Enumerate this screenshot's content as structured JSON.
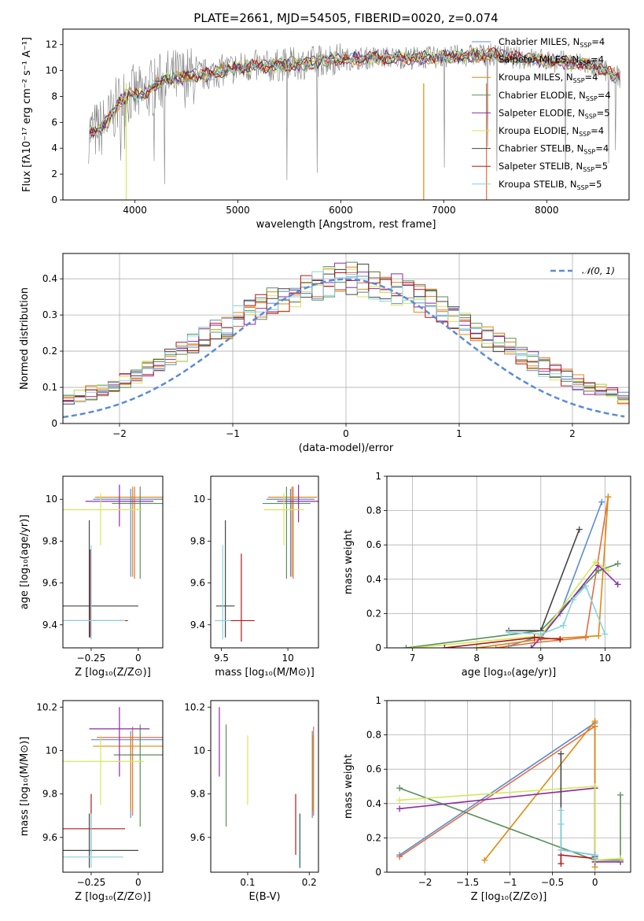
{
  "title": "PLATE=2661, MJD=54505, FIBERID=0020, z=0.074",
  "colors": {
    "Chabrier MILES": "#5b8bd6",
    "Salpeter MILES": "#e26e42",
    "Kroupa MILES": "#e08a10",
    "Chabrier ELODIE": "#5a8f5a",
    "Salpeter ELODIE": "#8e2ba6",
    "Kroupa ELODIE": "#d4e85a",
    "Chabrier STELIB": "#454545",
    "Salpeter STELIB": "#b01818",
    "Kroupa STELIB": "#86d3e0",
    "data": "#808080",
    "normal": "#5b8bd6"
  },
  "chart_data": [
    {
      "id": "spectrum",
      "type": "line",
      "title": "PLATE=2661, MJD=54505, FIBERID=0020, z=0.074",
      "xlabel": "wavelength [Angstrom, rest frame]",
      "ylabel": "Flux [fλ10⁻¹⁷ erg cm⁻² s⁻¹ A⁻¹]",
      "xlim": [
        3300,
        8800
      ],
      "ylim": [
        0,
        13.2
      ],
      "xticks": [
        4000,
        5000,
        6000,
        7000,
        8000
      ],
      "yticks": [
        0,
        2,
        4,
        6,
        8,
        10,
        12
      ],
      "legend": [
        {
          "label": "Chabrier MILES, N",
          "sub": "SSP",
          "tail": "=4",
          "key": "Chabrier MILES"
        },
        {
          "label": "Salpeter MILES, N",
          "sub": "SSP",
          "tail": "=4",
          "key": "Salpeter MILES"
        },
        {
          "label": "Kroupa MILES, N",
          "sub": "SSP",
          "tail": "=4",
          "key": "Kroupa MILES"
        },
        {
          "label": "Chabrier ELODIE, N",
          "sub": "SSP",
          "tail": "=4",
          "key": "Chabrier ELODIE"
        },
        {
          "label": "Salpeter ELODIE, N",
          "sub": "SSP",
          "tail": "=5",
          "key": "Salpeter ELODIE"
        },
        {
          "label": "Kroupa ELODIE, N",
          "sub": "SSP",
          "tail": "=4",
          "key": "Kroupa ELODIE"
        },
        {
          "label": "Chabrier STELIB, N",
          "sub": "SSP",
          "tail": "=4",
          "key": "Chabrier STELIB"
        },
        {
          "label": "Salpeter STELIB, N",
          "sub": "SSP",
          "tail": "=5",
          "key": "Salpeter STELIB"
        },
        {
          "label": "Kroupa STELIB, N",
          "sub": "SSP",
          "tail": "=5",
          "key": "Kroupa STELIB"
        }
      ],
      "legend_position": "right",
      "model_envelope": {
        "x": [
          3550,
          3650,
          3750,
          3850,
          3950,
          4050,
          4150,
          4300,
          4500,
          4700,
          4900,
          5100,
          5300,
          5500,
          5700,
          5900,
          6100,
          6300,
          6500,
          6700,
          6900,
          7100,
          7300,
          7500,
          7700,
          7900,
          8100,
          8300,
          8500,
          8700
        ],
        "y": [
          5.2,
          5.4,
          6.2,
          7.6,
          8.2,
          8.0,
          8.6,
          9.3,
          9.5,
          9.7,
          10.1,
          10.3,
          10.3,
          10.5,
          10.6,
          10.9,
          10.9,
          11.0,
          11.0,
          11.0,
          11.0,
          11.1,
          11.2,
          11.2,
          11.0,
          10.9,
          10.7,
          10.6,
          10.2,
          9.5
        ]
      }
    },
    {
      "id": "residuals",
      "type": "line",
      "xlabel": "(data-model)/error",
      "ylabel": "Normed distribution",
      "xlim": [
        -2.5,
        2.5
      ],
      "ylim": [
        0,
        0.47
      ],
      "xticks": [
        -2,
        -1,
        0,
        1,
        2
      ],
      "yticks": [
        0.0,
        0.1,
        0.2,
        0.3,
        0.4
      ],
      "grid": true,
      "legend": "𝒩(0, 1)",
      "legend_position": "top-right",
      "bin_width": 0.1,
      "histogram_mean": [
        0.028,
        0.032,
        0.036,
        0.042,
        0.05,
        0.058,
        0.066,
        0.075,
        0.085,
        0.096,
        0.108,
        0.121,
        0.135,
        0.15,
        0.165,
        0.182,
        0.199,
        0.216,
        0.234,
        0.252,
        0.27,
        0.288,
        0.305,
        0.322,
        0.338,
        0.353,
        0.366,
        0.378,
        0.388,
        0.396,
        0.4,
        0.399,
        0.396,
        0.39,
        0.382,
        0.371,
        0.359,
        0.345,
        0.33,
        0.313,
        0.296,
        0.278,
        0.26,
        0.242,
        0.224,
        0.206,
        0.189,
        0.172,
        0.156,
        0.141,
        0.127,
        0.113,
        0.101,
        0.09,
        0.08,
        0.07,
        0.062,
        0.054,
        0.047,
        0.041,
        0.036,
        0.032
      ]
    },
    {
      "id": "age-vs-Z",
      "type": "scatter",
      "xlabel": "Z [log₁₀(Z/Z⊙)]",
      "ylabel": "age  [log₁₀(age/yr)]",
      "xlim": [
        -0.4,
        0.13
      ],
      "ylim": [
        9.29,
        10.11
      ],
      "xticks": [
        -0.25,
        0.0
      ],
      "yticks": [
        9.4,
        9.6,
        9.8,
        10.0
      ],
      "points": [
        {
          "key": "Chabrier MILES",
          "x": -0.04,
          "y": 10.0,
          "xerr": 0.2,
          "yerr": [
            0.37,
            0.05
          ]
        },
        {
          "key": "Salpeter MILES",
          "x": -0.02,
          "y": 10.01,
          "xerr": 0.2,
          "yerr": [
            0.39,
            0.05
          ]
        },
        {
          "key": "Kroupa MILES",
          "x": -0.03,
          "y": 10.01,
          "xerr": 0.2,
          "yerr": [
            0.38,
            0.05
          ]
        },
        {
          "key": "Chabrier ELODIE",
          "x": 0.01,
          "y": 9.98,
          "xerr": 0.15,
          "yerr": [
            0.36,
            0.08
          ]
        },
        {
          "key": "Salpeter ELODIE",
          "x": -0.1,
          "y": 9.99,
          "xerr": 0.18,
          "yerr": [
            0.12,
            0.08
          ]
        },
        {
          "key": "Kroupa ELODIE",
          "x": -0.2,
          "y": 9.95,
          "xerr": 0.22,
          "yerr": [
            0.17,
            0.08
          ]
        },
        {
          "key": "Chabrier STELIB",
          "x": -0.26,
          "y": 9.49,
          "xerr": 0.26,
          "yerr": [
            0.15,
            0.41
          ]
        },
        {
          "key": "Salpeter STELIB",
          "x": -0.255,
          "y": 9.42,
          "xerr": 0.2,
          "yerr": [
            0.08,
            0.34
          ]
        },
        {
          "key": "Kroupa STELIB",
          "x": -0.25,
          "y": 9.42,
          "xerr": 0.18,
          "yerr": [
            0.09,
            0.36
          ]
        }
      ]
    },
    {
      "id": "age-vs-mass",
      "type": "scatter",
      "xlabel": "mass [log₁₀(M/M⊙)]",
      "ylabel": "",
      "xlim": [
        9.42,
        10.23
      ],
      "ylim": [
        9.29,
        10.11
      ],
      "xticks": [
        9.5,
        10.0
      ],
      "yticks": [
        9.4,
        9.6,
        9.8,
        10.0
      ],
      "points": [
        {
          "key": "Chabrier MILES",
          "x": 10.02,
          "y": 10.0,
          "xerr": 0.18,
          "yerr": [
            0.37,
            0.05
          ]
        },
        {
          "key": "Salpeter MILES",
          "x": 10.04,
          "y": 10.01,
          "xerr": 0.18,
          "yerr": [
            0.39,
            0.05
          ]
        },
        {
          "key": "Kroupa MILES",
          "x": 10.03,
          "y": 10.01,
          "xerr": 0.18,
          "yerr": [
            0.38,
            0.05
          ]
        },
        {
          "key": "Chabrier ELODIE",
          "x": 9.99,
          "y": 9.98,
          "xerr": 0.18,
          "yerr": [
            0.36,
            0.08
          ]
        },
        {
          "key": "Salpeter ELODIE",
          "x": 10.08,
          "y": 9.99,
          "xerr": 0.16,
          "yerr": [
            0.1,
            0.08
          ]
        },
        {
          "key": "Kroupa ELODIE",
          "x": 9.97,
          "y": 9.95,
          "xerr": 0.15,
          "yerr": [
            0.17,
            0.08
          ]
        },
        {
          "key": "Chabrier STELIB",
          "x": 9.53,
          "y": 9.49,
          "xerr": 0.07,
          "yerr": [
            0.15,
            0.41
          ]
        },
        {
          "key": "Salpeter STELIB",
          "x": 9.65,
          "y": 9.42,
          "xerr": 0.1,
          "yerr": [
            0.1,
            0.32
          ]
        },
        {
          "key": "Kroupa STELIB",
          "x": 9.51,
          "y": 9.42,
          "xerr": 0.06,
          "yerr": [
            0.09,
            0.36
          ]
        }
      ]
    },
    {
      "id": "massweight-vs-age",
      "type": "line",
      "xlabel": "age  [log₁₀(age/yr)]",
      "ylabel": "mass weight",
      "xlim": [
        6.6,
        10.4
      ],
      "ylim": [
        0,
        1.0
      ],
      "xticks": [
        7,
        8,
        9,
        10
      ],
      "yticks": [
        0.0,
        0.2,
        0.4,
        0.6,
        0.8,
        1.0
      ],
      "grid": true,
      "series": [
        {
          "key": "Chabrier MILES",
          "x": [
            8.5,
            9.0,
            9.3,
            9.95
          ],
          "y": [
            0.01,
            0.07,
            0.2,
            0.85
          ]
        },
        {
          "key": "Salpeter MILES",
          "x": [
            8.3,
            8.9,
            9.7,
            10.05
          ],
          "y": [
            0.0,
            0.03,
            0.06,
            0.88
          ]
        },
        {
          "key": "Kroupa MILES",
          "x": [
            8.0,
            9.0,
            9.9,
            10.05
          ],
          "y": [
            0.0,
            0.05,
            0.07,
            0.88
          ]
        },
        {
          "key": "Chabrier ELODIE",
          "x": [
            6.9,
            9.0,
            9.9,
            10.2
          ],
          "y": [
            0.0,
            0.1,
            0.45,
            0.49
          ]
        },
        {
          "key": "Salpeter ELODIE",
          "x": [
            8.85,
            9.0,
            9.9,
            10.2
          ],
          "y": [
            0.0,
            0.06,
            0.48,
            0.37
          ]
        },
        {
          "key": "Kroupa ELODIE",
          "x": [
            7.0,
            9.0,
            9.85,
            10.05
          ],
          "y": [
            0.0,
            0.07,
            0.5,
            0.45
          ]
        },
        {
          "key": "Chabrier STELIB",
          "x": [
            8.5,
            9.0,
            9.6
          ],
          "y": [
            0.1,
            0.1,
            0.69
          ]
        },
        {
          "key": "Salpeter STELIB",
          "x": [
            7.5,
            8.9,
            9.3
          ],
          "y": [
            0.0,
            0.06,
            0.05
          ]
        },
        {
          "key": "Kroupa STELIB",
          "x": [
            8.5,
            9.0,
            9.35,
            9.5,
            9.7,
            10.0
          ],
          "y": [
            0.09,
            0.08,
            0.13,
            0.28,
            0.36,
            0.08
          ]
        }
      ]
    },
    {
      "id": "mass-vs-Z",
      "type": "scatter",
      "xlabel": "Z [log₁₀(Z/Z⊙)]",
      "ylabel": "mass [log₁₀(M/M⊙)]",
      "xlim": [
        -0.4,
        0.13
      ],
      "ylim": [
        9.44,
        10.23
      ],
      "xticks": [
        -0.25,
        0.0
      ],
      "yticks": [
        9.6,
        9.8,
        10.0,
        10.2
      ],
      "points": [
        {
          "key": "Chabrier MILES",
          "x": -0.04,
          "y": 10.05,
          "xerr": 0.21,
          "yerr": [
            0.36,
            0.04
          ]
        },
        {
          "key": "Salpeter MILES",
          "x": -0.03,
          "y": 10.06,
          "xerr": 0.19,
          "yerr": [
            0.36,
            0.05
          ]
        },
        {
          "key": "Kroupa MILES",
          "x": -0.04,
          "y": 10.02,
          "xerr": 0.2,
          "yerr": [
            0.3,
            0.05
          ]
        },
        {
          "key": "Chabrier ELODIE",
          "x": 0.01,
          "y": 9.98,
          "xerr": 0.14,
          "yerr": [
            0.33,
            0.14
          ]
        },
        {
          "key": "Salpeter ELODIE",
          "x": -0.1,
          "y": 10.1,
          "xerr": 0.16,
          "yerr": [
            0.22,
            0.1
          ]
        },
        {
          "key": "Kroupa ELODIE",
          "x": -0.2,
          "y": 9.95,
          "xerr": 0.23,
          "yerr": [
            0.2,
            0.12
          ]
        },
        {
          "key": "Chabrier STELIB",
          "x": -0.26,
          "y": 9.54,
          "xerr": 0.26,
          "yerr": [
            0.08,
            0.17
          ]
        },
        {
          "key": "Salpeter STELIB",
          "x": -0.25,
          "y": 9.64,
          "xerr": 0.18,
          "yerr": [
            0.12,
            0.16
          ]
        },
        {
          "key": "Kroupa STELIB",
          "x": -0.25,
          "y": 9.51,
          "xerr": 0.17,
          "yerr": [
            0.05,
            0.2
          ]
        }
      ]
    },
    {
      "id": "mass-vs-ebv",
      "type": "scatter",
      "xlabel": "E(B-V)",
      "ylabel": "",
      "xlim": [
        0.04,
        0.215
      ],
      "ylim": [
        9.44,
        10.23
      ],
      "xticks": [
        0.1,
        0.2
      ],
      "yticks": [
        9.6,
        9.8,
        10.0,
        10.2
      ],
      "points": [
        {
          "key": "Chabrier MILES",
          "x": 0.205,
          "y": 10.05,
          "yerr": [
            0.36,
            0.04
          ]
        },
        {
          "key": "Salpeter MILES",
          "x": 0.207,
          "y": 10.06,
          "yerr": [
            0.36,
            0.05
          ]
        },
        {
          "key": "Kroupa MILES",
          "x": 0.206,
          "y": 10.02,
          "yerr": [
            0.3,
            0.05
          ]
        },
        {
          "key": "Chabrier ELODIE",
          "x": 0.065,
          "y": 9.98,
          "yerr": [
            0.33,
            0.14
          ]
        },
        {
          "key": "Salpeter ELODIE",
          "x": 0.054,
          "y": 10.1,
          "yerr": [
            0.22,
            0.1
          ]
        },
        {
          "key": "Kroupa ELODIE",
          "x": 0.1,
          "y": 9.95,
          "yerr": [
            0.2,
            0.12
          ]
        },
        {
          "key": "Chabrier STELIB",
          "x": 0.185,
          "y": 9.54,
          "yerr": [
            0.08,
            0.17
          ]
        },
        {
          "key": "Salpeter STELIB",
          "x": 0.178,
          "y": 9.64,
          "yerr": [
            0.12,
            0.16
          ]
        },
        {
          "key": "Kroupa STELIB",
          "x": 0.184,
          "y": 9.51,
          "yerr": [
            0.05,
            0.2
          ]
        }
      ]
    },
    {
      "id": "massweight-vs-Z",
      "type": "line",
      "xlabel": "Z [log₁₀(Z/Z⊙)]",
      "ylabel": "mass weight",
      "xlim": [
        -2.45,
        0.42
      ],
      "ylim": [
        0,
        1.0
      ],
      "xticks": [
        -2.0,
        -1.5,
        -1.0,
        -0.5,
        0.0
      ],
      "yticks": [
        0.0,
        0.2,
        0.4,
        0.6,
        0.8,
        1.0
      ],
      "grid": true,
      "series": [
        {
          "key": "Chabrier MILES",
          "x": [
            -2.3,
            0.0,
            0.0
          ],
          "y": [
            0.1,
            0.87,
            0.1
          ]
        },
        {
          "key": "Salpeter MILES",
          "x": [
            -2.3,
            0.0,
            0.0
          ],
          "y": [
            0.09,
            0.85,
            0.06
          ]
        },
        {
          "key": "Kroupa MILES",
          "x": [
            -1.3,
            0.0,
            0.0
          ],
          "y": [
            0.07,
            0.88,
            0.03
          ]
        },
        {
          "key": "Chabrier ELODIE",
          "x": [
            -2.3,
            0.0,
            0.3,
            0.3
          ],
          "y": [
            0.49,
            0.07,
            0.07,
            0.45
          ]
        },
        {
          "key": "Salpeter ELODIE",
          "x": [
            -2.3,
            0.0,
            0.0,
            0.3
          ],
          "y": [
            0.37,
            0.49,
            0.06,
            0.06
          ]
        },
        {
          "key": "Kroupa ELODIE",
          "x": [
            -2.3,
            0.0,
            0.0,
            0.3
          ],
          "y": [
            0.42,
            0.5,
            0.07,
            0.08
          ]
        },
        {
          "key": "Chabrier STELIB",
          "x": [
            -0.4,
            -0.4,
            0.0,
            0.0
          ],
          "y": [
            0.69,
            0.13,
            0.1,
            0.09
          ]
        },
        {
          "key": "Salpeter STELIB",
          "x": [
            -0.4,
            -0.4,
            0.0
          ],
          "y": [
            0.05,
            0.1,
            0.08
          ]
        },
        {
          "key": "Kroupa STELIB",
          "x": [
            -0.4,
            -0.4,
            -0.4,
            0.0,
            0.0
          ],
          "y": [
            0.36,
            0.28,
            0.13,
            0.1,
            0.08
          ]
        }
      ]
    }
  ]
}
